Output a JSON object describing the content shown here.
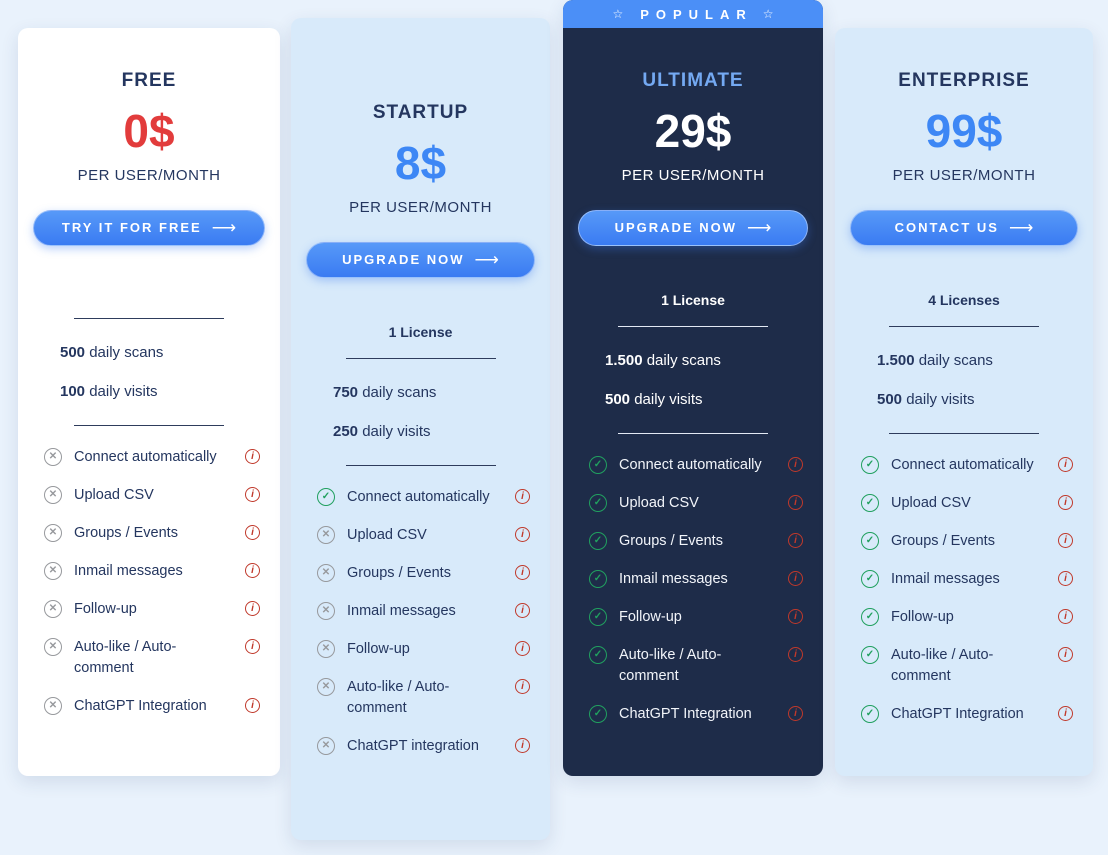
{
  "colors": {
    "page-bg": "#e9f2fc",
    "card-light-blue": "#d8eafa",
    "card-dark": "#1e2c49",
    "navy": "#24365f",
    "price-blue": "#3d87f5",
    "price-red": "#e23c3c",
    "button-blue-top": "#5799f8",
    "button-blue-bottom": "#3a7bf2",
    "banner-blue": "#4b8ff7",
    "ultimate-title": "#74a9f2",
    "green": "#21a05f",
    "gray-icon": "#97999d",
    "info-red": "#c0392b"
  },
  "icons": {
    "arrow": "⟶",
    "star": "☆",
    "check": "✓",
    "cross": "✕",
    "info": "i"
  },
  "cards": [
    {
      "title": "FREE",
      "price": "0$",
      "per": "PER USER/MONTH",
      "button_label": "TRY IT FOR FREE",
      "scans_num": "500",
      "scans_label": "daily scans",
      "visits_num": "100",
      "visits_label": "daily visits",
      "features": [
        {
          "label": "Connect automatically",
          "included": false
        },
        {
          "label": "Upload CSV",
          "included": false
        },
        {
          "label": "Groups / Events",
          "included": false
        },
        {
          "label": "Inmail messages",
          "included": false
        },
        {
          "label": "Follow-up",
          "included": false
        },
        {
          "label": "Auto-like / Auto-comment",
          "included": false
        },
        {
          "label": "ChatGPT Integration",
          "included": false
        }
      ]
    },
    {
      "title": "STARTUP",
      "price": "8$",
      "per": "PER USER/MONTH",
      "button_label": "UPGRADE NOW",
      "license": "1 License",
      "scans_num": "750",
      "scans_label": "daily scans",
      "visits_num": "250",
      "visits_label": "daily visits",
      "features": [
        {
          "label": "Connect automatically",
          "included": true
        },
        {
          "label": "Upload CSV",
          "included": false
        },
        {
          "label": "Groups / Events",
          "included": false
        },
        {
          "label": "Inmail messages",
          "included": false
        },
        {
          "label": "Follow-up",
          "included": false
        },
        {
          "label": "Auto-like / Auto-comment",
          "included": false
        },
        {
          "label": "ChatGPT integration",
          "included": false
        }
      ]
    },
    {
      "badge": "POPULAR",
      "title": "ULTIMATE",
      "price": "29$",
      "per": "PER USER/MONTH",
      "button_label": "UPGRADE NOW",
      "license": "1 License",
      "scans_num": "1.500",
      "scans_label": "daily scans",
      "visits_num": "500",
      "visits_label": "daily visits",
      "features": [
        {
          "label": "Connect automatically",
          "included": true
        },
        {
          "label": "Upload CSV",
          "included": true
        },
        {
          "label": "Groups / Events",
          "included": true
        },
        {
          "label": "Inmail messages",
          "included": true
        },
        {
          "label": "Follow-up",
          "included": true
        },
        {
          "label": "Auto-like / Auto-comment",
          "included": true
        },
        {
          "label": "ChatGPT Integration",
          "included": true
        }
      ]
    },
    {
      "title": "ENTERPRISE",
      "price": "99$",
      "per": "PER USER/MONTH",
      "button_label": "CONTACT US",
      "license": "4 Licenses",
      "scans_num": "1.500",
      "scans_label": "daily scans",
      "visits_num": "500",
      "visits_label": "daily visits",
      "features": [
        {
          "label": "Connect automatically",
          "included": true
        },
        {
          "label": "Upload CSV",
          "included": true
        },
        {
          "label": "Groups / Events",
          "included": true
        },
        {
          "label": "Inmail messages",
          "included": true
        },
        {
          "label": "Follow-up",
          "included": true
        },
        {
          "label": "Auto-like / Auto-comment",
          "included": true
        },
        {
          "label": "ChatGPT Integration",
          "included": true
        }
      ]
    }
  ]
}
